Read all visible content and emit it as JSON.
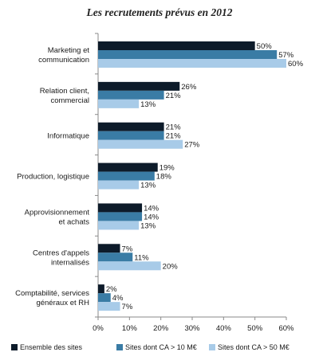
{
  "chart_data": {
    "type": "bar",
    "orientation": "horizontal",
    "title": "Les recrutements prévus en 2012",
    "categories": [
      [
        "Marketing et",
        "communication"
      ],
      [
        "Relation client,",
        "commercial"
      ],
      [
        "Informatique"
      ],
      [
        "Production, logistique"
      ],
      [
        "Approvisionnement",
        "et achats"
      ],
      [
        "Centres d'appels",
        "internalisés"
      ],
      [
        "Comptabilité, services",
        "généraux et RH"
      ]
    ],
    "series": [
      {
        "name": "Ensemble des sites",
        "color": "#0d1b2a",
        "values": [
          50,
          26,
          21,
          19,
          14,
          7,
          2
        ]
      },
      {
        "name": "Sites dont CA > 10 M€",
        "color": "#3a7ca5",
        "values": [
          57,
          21,
          21,
          18,
          14,
          11,
          4
        ]
      },
      {
        "name": "Sites dont CA > 50 M€",
        "color": "#a8cbe8",
        "values": [
          60,
          13,
          27,
          13,
          13,
          20,
          7
        ]
      }
    ],
    "value_suffix": "%",
    "xlim": [
      0,
      60
    ],
    "xticks": [
      "0%",
      "10%",
      "20%",
      "30%",
      "40%",
      "50%",
      "60%"
    ],
    "grid": false,
    "legend_position": "bottom"
  }
}
